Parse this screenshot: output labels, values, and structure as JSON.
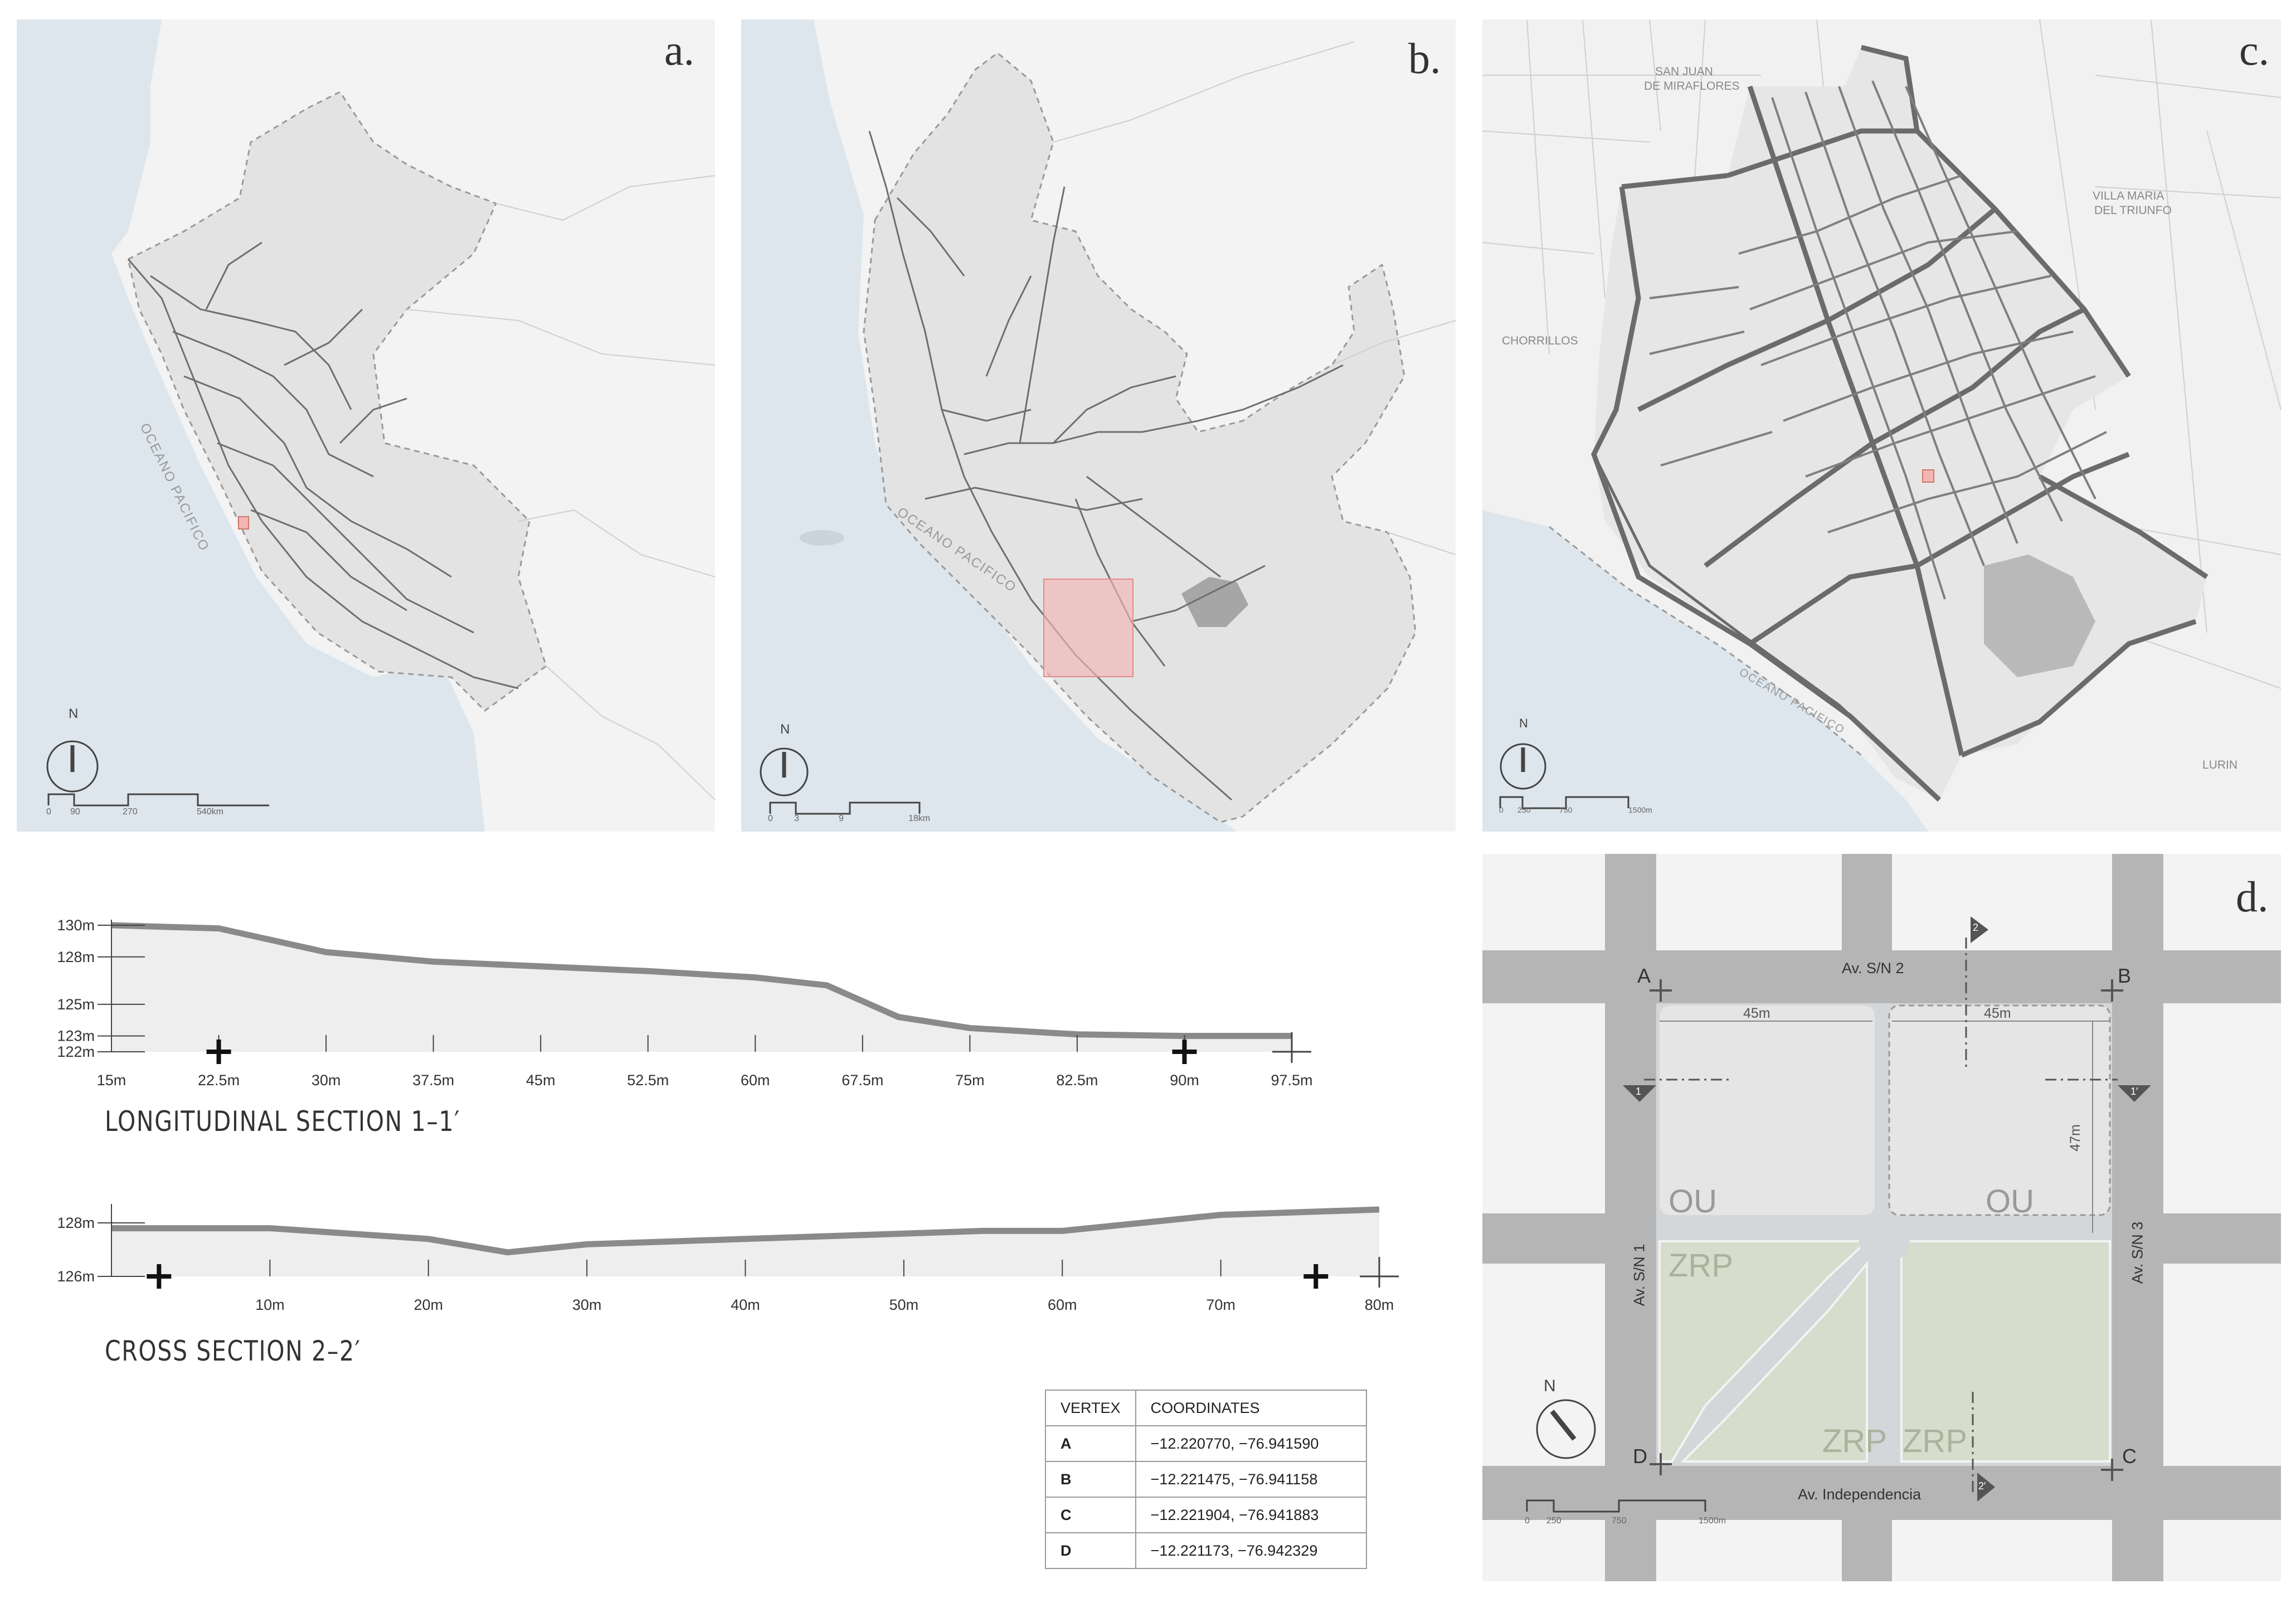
{
  "panels": {
    "a": {
      "label": "a.",
      "ocean": "OCEANO PACIFICO",
      "north": "N",
      "scale": [
        "0",
        "90",
        "270",
        "540km"
      ]
    },
    "b": {
      "label": "b.",
      "ocean": "OCEANO PACIFICO",
      "north": "N",
      "scale": [
        "0",
        "3",
        "9",
        "18km"
      ]
    },
    "c": {
      "label": "c.",
      "places": [
        "SAN JUAN",
        "DE MIRAFLORES",
        "VILLA MARIA",
        "DEL TRIUNFO",
        "CHORRILLOS",
        "LURIN"
      ],
      "ocean": "OCEANO PACIFICO",
      "north": "N",
      "scale": [
        "0",
        "250",
        "750",
        "1500m"
      ]
    },
    "d": {
      "label": "d.",
      "streets": {
        "top": "Av. S/N 2",
        "left": "Av. S/N 1",
        "right": "Av. S/N 3",
        "bottom": "Av. Independencia"
      },
      "vertices": [
        "A",
        "B",
        "C",
        "D"
      ],
      "dims": [
        "45m",
        "45m",
        "47m"
      ],
      "zones": [
        "OU",
        "OU",
        "ZRP",
        "ZRP",
        "ZRP"
      ],
      "section_marks": [
        "2",
        "1",
        "1′",
        "2′"
      ],
      "north": "N",
      "scale": [
        "0",
        "250",
        "750",
        "1500m"
      ]
    }
  },
  "longitudinal": {
    "title": "LONGITUDINAL SECTION  1–1′",
    "y_labels": [
      "130m",
      "128m",
      "125m",
      "123m",
      "122m"
    ],
    "x_labels": [
      "15m",
      "22.5m",
      "30m",
      "37.5m",
      "45m",
      "52.5m",
      "60m",
      "67.5m",
      "75m",
      "82.5m",
      "90m",
      "97.5m"
    ]
  },
  "cross": {
    "title": "CROSS  SECTION 2–2′",
    "y_labels": [
      "128m",
      "126m"
    ],
    "x_labels": [
      "10m",
      "20m",
      "30m",
      "40m",
      "50m",
      "60m",
      "70m",
      "80m"
    ]
  },
  "chart_data": [
    {
      "type": "area",
      "title": "LONGITUDINAL SECTION  1–1′",
      "x": [
        15,
        22.5,
        24,
        30,
        37.5,
        45,
        52.5,
        60,
        65,
        70,
        75,
        82.5,
        90,
        97.5
      ],
      "y": [
        130,
        129.8,
        129.5,
        128.3,
        127.7,
        127.4,
        127.1,
        126.7,
        126.2,
        124.2,
        123.5,
        123.1,
        123.0,
        123.0
      ],
      "yticks": [
        130,
        128,
        125,
        123,
        122
      ],
      "xlim": [
        15,
        97.5
      ],
      "ylim": [
        122,
        130
      ],
      "grid": false
    },
    {
      "type": "area",
      "title": "CROSS  SECTION 2–2′",
      "x": [
        0,
        5,
        10,
        15,
        20,
        25,
        30,
        35,
        40,
        45,
        50,
        55,
        60,
        65,
        70,
        75,
        80
      ],
      "y": [
        127.8,
        127.8,
        127.8,
        127.6,
        127.4,
        126.9,
        127.2,
        127.3,
        127.4,
        127.5,
        127.6,
        127.7,
        127.7,
        128.0,
        128.3,
        128.4,
        128.5
      ],
      "yticks": [
        128,
        126
      ],
      "xlim": [
        0,
        80
      ],
      "ylim": [
        126,
        128.5
      ],
      "grid": false
    }
  ],
  "coords_table": {
    "headers": [
      "VERTEX",
      "COORDINATES"
    ],
    "rows": [
      {
        "v": "A",
        "c": "−12.220770, −76.941590"
      },
      {
        "v": "B",
        "c": "−12.221475, −76.941158"
      },
      {
        "v": "C",
        "c": "−12.221904, −76.941883"
      },
      {
        "v": "D",
        "c": "−12.221173, −76.942329"
      }
    ]
  },
  "colors": {
    "sea": "#dde6ec",
    "land": "#f3f3f3",
    "region": "#e2e2e2",
    "roads": "#6e6e6e",
    "highlight": "#f4b5b5",
    "street": "#b4b4b4",
    "green": "#d6dccb"
  }
}
